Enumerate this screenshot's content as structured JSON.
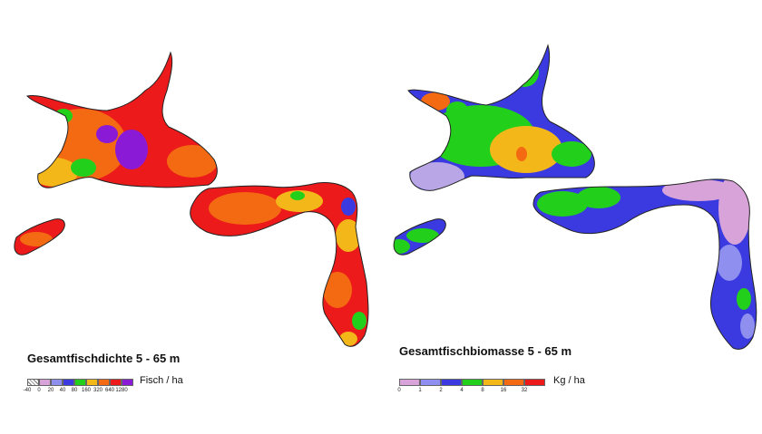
{
  "maps": [
    {
      "title": "Gesamtfischdichte 5 - 65 m",
      "unit": "Fisch / ha",
      "legend": [
        {
          "label": "-40",
          "color": "hatch"
        },
        {
          "label": "0",
          "color": "#d7a3d9"
        },
        {
          "label": "20",
          "color": "#8f8ff0"
        },
        {
          "label": "40",
          "color": "#3a3ae0"
        },
        {
          "label": "80",
          "color": "#22d01c"
        },
        {
          "label": "160",
          "color": "#f4b71a"
        },
        {
          "label": "320",
          "color": "#f46a12"
        },
        {
          "label": "640",
          "color": "#ec1a1a"
        },
        {
          "label": "1280",
          "color": "#8a1ad6"
        }
      ]
    },
    {
      "title": "Gesamtfischbiomasse 5 - 65 m",
      "unit": "Kg / ha",
      "legend": [
        {
          "label": "0",
          "color": "#d7a3d9"
        },
        {
          "label": "1",
          "color": "#8f8ff0"
        },
        {
          "label": "2",
          "color": "#3a3ae0"
        },
        {
          "label": "4",
          "color": "#22d01c"
        },
        {
          "label": "8",
          "color": "#f4b71a"
        },
        {
          "label": "16",
          "color": "#f46a12"
        },
        {
          "label": "32",
          "color": "#ec1a1a"
        }
      ]
    }
  ]
}
